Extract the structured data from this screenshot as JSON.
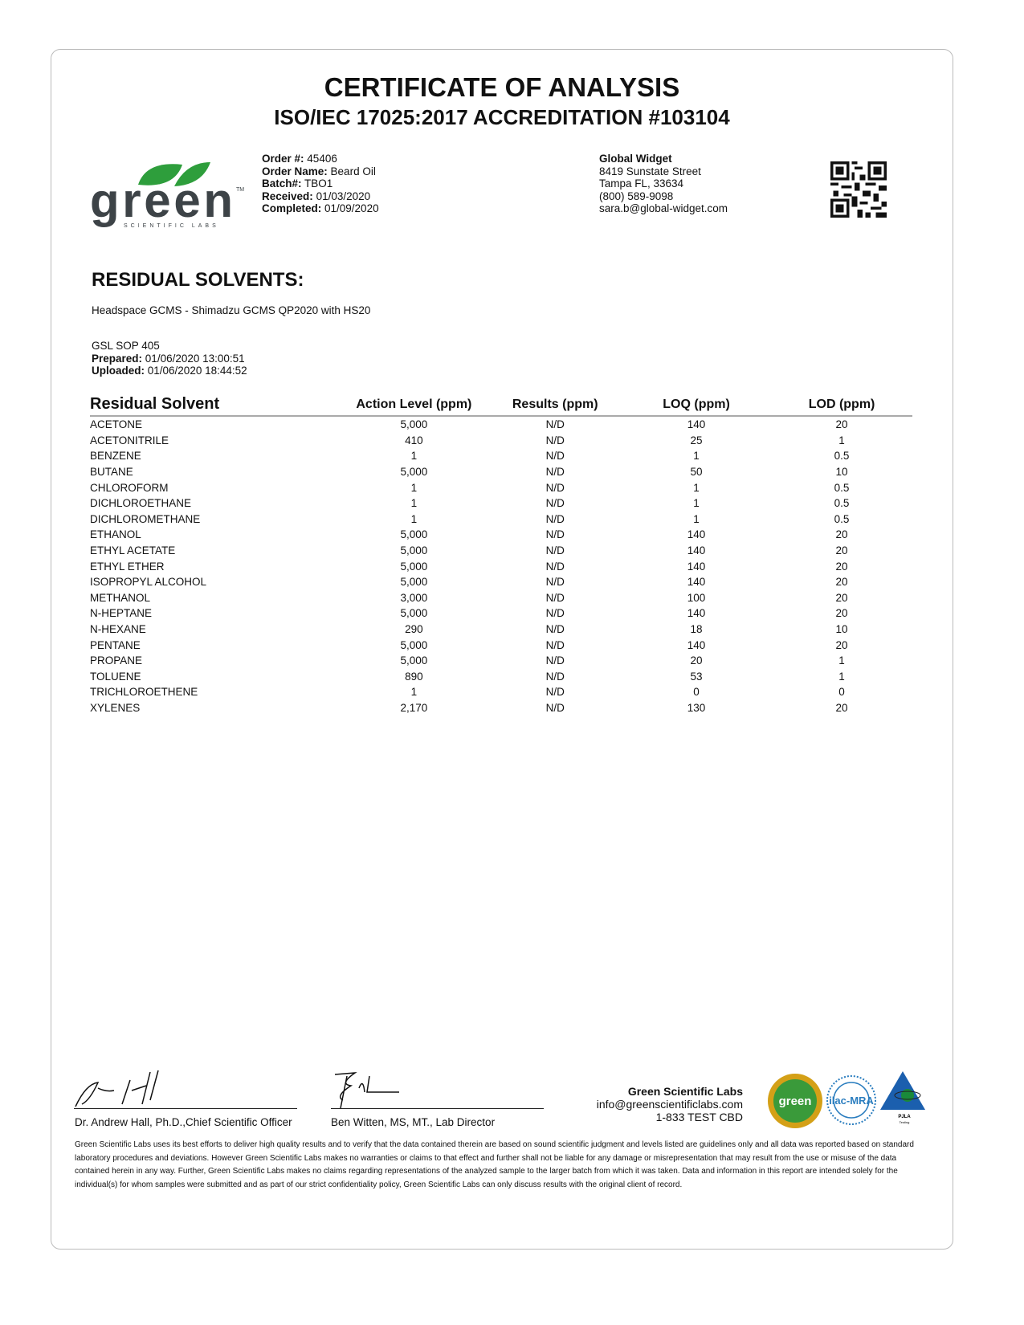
{
  "title": "CERTIFICATE OF ANALYSIS",
  "subtitle": "ISO/IEC 17025:2017 ACCREDITATION #103104",
  "logo": {
    "text": "green",
    "tagline": "SCIENTIFIC LABS",
    "brand_color": "#2e9e3c"
  },
  "order": {
    "order_no_label": "Order #:",
    "order_no": "45406",
    "order_name_label": "Order Name:",
    "order_name": "Beard Oil",
    "batch_label": "Batch#:",
    "batch": "TBO1",
    "received_label": "Received:",
    "received": "01/03/2020",
    "completed_label": "Completed:",
    "completed": "01/09/2020"
  },
  "client": {
    "name": "Global Widget",
    "street": "8419 Sunstate Street",
    "city": "Tampa FL, 33634",
    "phone": "(800) 589-9098",
    "email": "sara.b@global-widget.com"
  },
  "section": {
    "heading": "RESIDUAL SOLVENTS:",
    "method": "Headspace GCMS - Shimadzu GCMS QP2020 with HS20",
    "sop": "GSL SOP 405",
    "prepared_label": "Prepared:",
    "prepared": "01/06/2020 13:00:51",
    "uploaded_label": "Uploaded:",
    "uploaded": "01/06/2020 18:44:52"
  },
  "table": {
    "headers": [
      "Residual Solvent",
      "Action Level (ppm)",
      "Results (ppm)",
      "LOQ (ppm)",
      "LOD (ppm)"
    ],
    "rows": [
      [
        "ACETONE",
        "5,000",
        "N/D",
        "140",
        "20"
      ],
      [
        "ACETONITRILE",
        "410",
        "N/D",
        "25",
        "1"
      ],
      [
        "BENZENE",
        "1",
        "N/D",
        "1",
        "0.5"
      ],
      [
        "BUTANE",
        "5,000",
        "N/D",
        "50",
        "10"
      ],
      [
        "CHLOROFORM",
        "1",
        "N/D",
        "1",
        "0.5"
      ],
      [
        "DICHLOROETHANE",
        "1",
        "N/D",
        "1",
        "0.5"
      ],
      [
        "DICHLOROMETHANE",
        "1",
        "N/D",
        "1",
        "0.5"
      ],
      [
        "ETHANOL",
        "5,000",
        "N/D",
        "140",
        "20"
      ],
      [
        "ETHYL ACETATE",
        "5,000",
        "N/D",
        "140",
        "20"
      ],
      [
        "ETHYL ETHER",
        "5,000",
        "N/D",
        "140",
        "20"
      ],
      [
        "ISOPROPYL ALCOHOL",
        "5,000",
        "N/D",
        "140",
        "20"
      ],
      [
        "METHANOL",
        "3,000",
        "N/D",
        "100",
        "20"
      ],
      [
        "N-HEPTANE",
        "5,000",
        "N/D",
        "140",
        "20"
      ],
      [
        "N-HEXANE",
        "290",
        "N/D",
        "18",
        "10"
      ],
      [
        "PENTANE",
        "5,000",
        "N/D",
        "140",
        "20"
      ],
      [
        "PROPANE",
        "5,000",
        "N/D",
        "20",
        "1"
      ],
      [
        "TOLUENE",
        "890",
        "N/D",
        "53",
        "1"
      ],
      [
        "TRICHLOROETHENE",
        "1",
        "N/D",
        "0",
        "0"
      ],
      [
        "XYLENES",
        "2,170",
        "N/D",
        "130",
        "20"
      ]
    ]
  },
  "signatures": [
    {
      "name": "Dr. Andrew Hall, Ph.D.,Chief Scientific Officer"
    },
    {
      "name": "Ben Witten, MS, MT., Lab Director"
    }
  ],
  "lab": {
    "name": "Green Scientific Labs",
    "email": "info@greenscientificlabs.com",
    "phone": "1-833 TEST CBD"
  },
  "badges": {
    "seal": "green",
    "ilac": "ilac-MRA",
    "pjla": "PJLA"
  },
  "disclaimer": "Green Scientific Labs uses its best efforts to deliver high quality results and to verify that the data contained therein are based on sound scientific judgment and levels listed are guidelines only and all data was reported based on standard laboratory procedures and deviations. However Green Scientific Labs makes no warranties or claims to that effect and further shall not be liable for any damage or misrepresentation that may result from the use or misuse of the data contained herein in any way. Further, Green Scientific Labs makes no claims regarding representations of the analyzed sample to the larger batch from which it was taken. Data and information in this report are intended solely for the individual(s) for whom samples were submitted and as part of our strict confidentiality policy, Green Scientific Labs can only discuss results with the original client of record."
}
